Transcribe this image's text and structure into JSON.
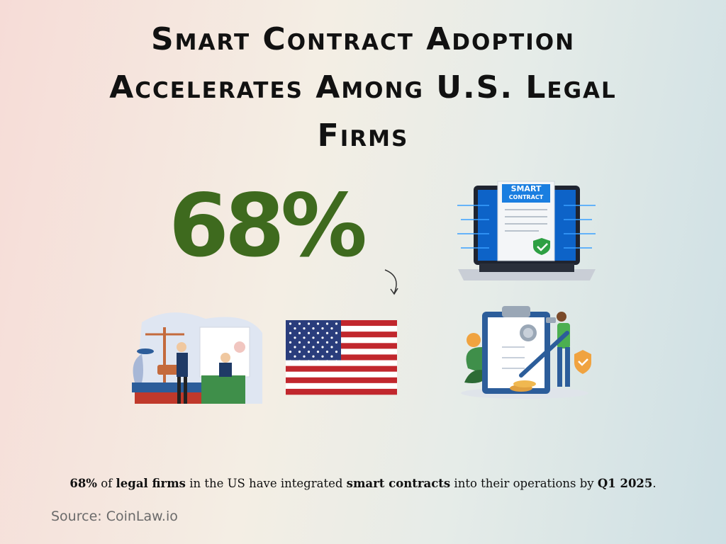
{
  "header": {
    "title": "Smart Contract Adoption Accelerates Among U.S. Legal Firms"
  },
  "stat": {
    "value": "68%"
  },
  "illustrations": {
    "laptop_label_1": "SMART",
    "laptop_label_2": "CONTRACT"
  },
  "caption": {
    "segments": [
      {
        "text": "68%",
        "bold": true
      },
      {
        "text": " of ",
        "bold": false
      },
      {
        "text": "legal firms",
        "bold": true
      },
      {
        "text": " in the US have integrated ",
        "bold": false
      },
      {
        "text": "smart contracts",
        "bold": true
      },
      {
        "text": " into their operations by ",
        "bold": false
      },
      {
        "text": "Q1 2025",
        "bold": true
      },
      {
        "text": ".",
        "bold": false
      }
    ]
  },
  "footer": {
    "source": "Source: CoinLaw.io"
  }
}
